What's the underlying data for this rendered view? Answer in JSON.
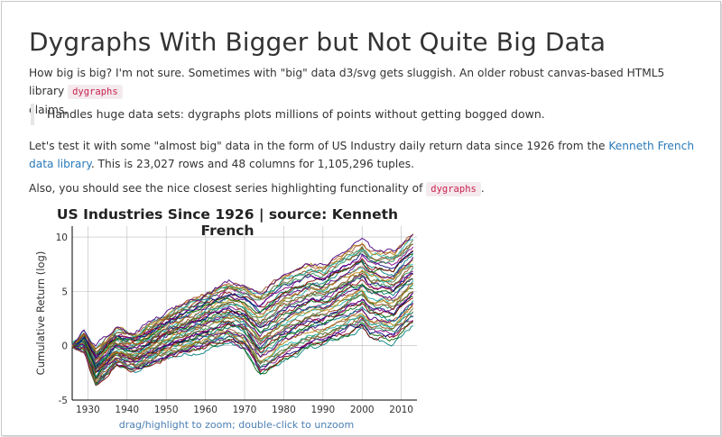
{
  "page": {
    "title": "Dygraphs With Bigger but Not Quite Big Data",
    "p1_text": "How big is big? I'm not sure. Sometimes with \"big\" data d3/svg gets sluggish. An older robust canvas-based HTML5 library",
    "p1_code": "dygraphs",
    "p1_tail": "claims,",
    "quote": "Handles huge data sets: dygraphs plots millions of points without getting bogged down.",
    "p2_text": "Let's test it with some \"almost big\" data in the form of US Industry daily return data since 1926 from the",
    "p2_link": "Kenneth French data library",
    "p2_tail": ". This is 23,027 rows and 48 columns for 1,105,296 tuples.",
    "p3_text": "Also, you should see the nice closest series highlighting functionality of",
    "p3_code": "dygraphs",
    "p3_tail": ".",
    "chart_hint": "drag/highlight to zoom; double-click to unzoom"
  },
  "colors": {
    "text": "#333333",
    "link": "#2a7ab9",
    "code": "#c7254e",
    "grid": "#bbbbbb",
    "series": [
      "#008080",
      "#006400",
      "#800000",
      "#000080",
      "#800080",
      "#2e8b57",
      "#8b4513",
      "#556b2f",
      "#20b2aa",
      "#b8860b",
      "#a0522d",
      "#4b0082"
    ]
  },
  "chart_data": {
    "type": "line",
    "title": "US Industries Since 1926 | source: Kenneth French",
    "xlabel": "",
    "ylabel": "Cumulative Return (log)",
    "xlim": [
      1926,
      2014
    ],
    "ylim": [
      -5,
      11
    ],
    "x_ticks": [
      1930,
      1940,
      1950,
      1960,
      1970,
      1980,
      1990,
      2000,
      2010
    ],
    "y_ticks": [
      -5,
      0,
      5,
      10
    ],
    "grid": true,
    "legend": "none",
    "series_count": 48,
    "envelope": {
      "x": [
        1926,
        1929,
        1932,
        1937,
        1942,
        1950,
        1960,
        1966,
        1970,
        1974,
        1980,
        1987,
        1990,
        2000,
        2002,
        2008,
        2013
      ],
      "upper": [
        0.0,
        1.3,
        -0.2,
        1.5,
        1.2,
        3.0,
        5.0,
        6.0,
        5.6,
        5.0,
        6.8,
        7.6,
        7.4,
        9.8,
        9.0,
        8.8,
        10.5
      ],
      "lower": [
        0.0,
        -0.5,
        -3.8,
        -1.8,
        -2.4,
        -1.2,
        -0.4,
        0.2,
        -0.4,
        -2.8,
        -1.5,
        -0.3,
        -0.1,
        1.5,
        0.6,
        0.3,
        1.8
      ]
    }
  }
}
